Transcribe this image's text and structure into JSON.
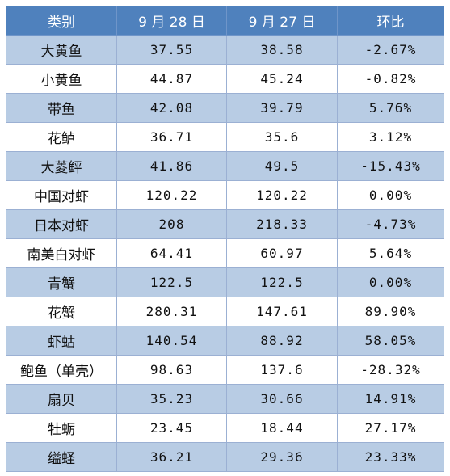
{
  "table": {
    "headers": [
      "类别",
      "9 月 28 日",
      "9 月 27 日",
      "环比"
    ],
    "rows": [
      {
        "name": "大黄鱼",
        "sep28": "37.55",
        "sep27": "38.58",
        "change": "-2.67%"
      },
      {
        "name": "小黄鱼",
        "sep28": "44.87",
        "sep27": "45.24",
        "change": "-0.82%"
      },
      {
        "name": "带鱼",
        "sep28": "42.08",
        "sep27": "39.79",
        "change": "5.76%"
      },
      {
        "name": "花鲈",
        "sep28": "36.71",
        "sep27": "35.6",
        "change": "3.12%"
      },
      {
        "name": "大菱鲆",
        "sep28": "41.86",
        "sep27": "49.5",
        "change": "-15.43%"
      },
      {
        "name": "中国对虾",
        "sep28": "120.22",
        "sep27": "120.22",
        "change": "0.00%"
      },
      {
        "name": "日本对虾",
        "sep28": "208",
        "sep27": "218.33",
        "change": "-4.73%"
      },
      {
        "name": "南美白对虾",
        "sep28": "64.41",
        "sep27": "60.97",
        "change": "5.64%"
      },
      {
        "name": "青蟹",
        "sep28": "122.5",
        "sep27": "122.5",
        "change": "0.00%"
      },
      {
        "name": "花蟹",
        "sep28": "280.31",
        "sep27": "147.61",
        "change": "89.90%"
      },
      {
        "name": "虾蛄",
        "sep28": "140.54",
        "sep27": "88.92",
        "change": "58.05%"
      },
      {
        "name": "鲍鱼（单壳）",
        "sep28": "98.63",
        "sep27": "137.6",
        "change": "-28.32%"
      },
      {
        "name": "扇贝",
        "sep28": "35.23",
        "sep27": "30.66",
        "change": "14.91%"
      },
      {
        "name": "牡蛎",
        "sep28": "23.45",
        "sep27": "18.44",
        "change": "27.17%"
      },
      {
        "name": "缢蛏",
        "sep28": "36.21",
        "sep27": "29.36",
        "change": "23.33%"
      }
    ]
  },
  "colors": {
    "header_bg": "#4f81bd",
    "row_shade": "#b8cce4",
    "row_plain": "#ffffff",
    "border": "#9bb0d3"
  }
}
